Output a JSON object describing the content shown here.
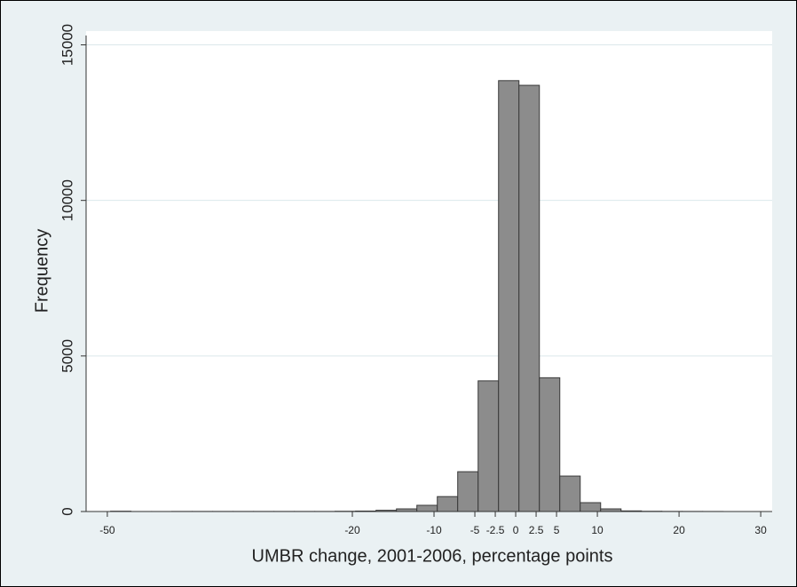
{
  "chart_data": {
    "type": "histogram",
    "x_label": "UMBR change, 2001-2006, percentage points",
    "y_label": "Frequency",
    "bins": [
      -49.6,
      -47.1,
      -44.6,
      -42.1,
      -39.6,
      -37.1,
      -34.6,
      -32.1,
      -29.6,
      -27.1,
      -24.6,
      -22.1,
      -19.6,
      -17.1,
      -14.6,
      -12.1,
      -9.6,
      -7.1,
      -4.6,
      -2.1,
      0.4,
      2.9,
      5.4,
      7.9,
      10.4,
      12.9,
      15.4,
      17.9,
      20.4,
      22.9,
      25.4
    ],
    "values": [
      10,
      1,
      1,
      3,
      3,
      3,
      3,
      3,
      3,
      3,
      3,
      8,
      15,
      40,
      85,
      200,
      480,
      1280,
      4200,
      13850,
      13700,
      4300,
      1140,
      285,
      85,
      20,
      8,
      4,
      3,
      2
    ],
    "color": "#8c8c8c",
    "xlim": [
      -52.6,
      31.4
    ],
    "xticks": [
      -50,
      -20,
      -10,
      -5,
      -2.5,
      0,
      2.5,
      5,
      10,
      20,
      30
    ],
    "ylim": [
      0,
      15300
    ],
    "yticks": [
      0,
      5000,
      10000,
      15000
    ],
    "grid": true
  }
}
